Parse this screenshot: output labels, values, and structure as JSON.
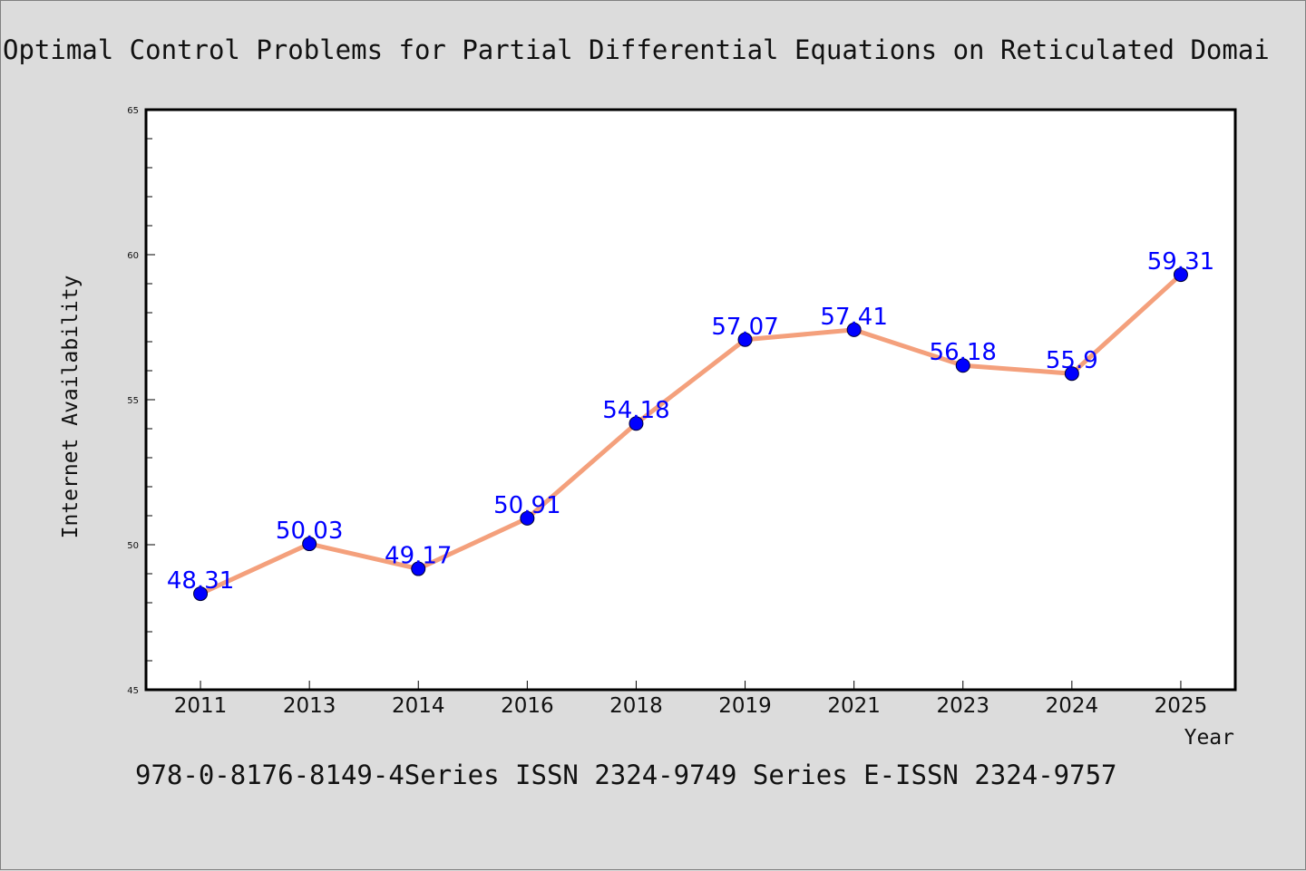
{
  "chart_data": {
    "type": "line",
    "title": "Optimal Control Problems for Partial Differential Equations on Reticulated Domai",
    "xlabel": "Year",
    "ylabel": "Internet Availability",
    "categories": [
      "2011",
      "2013",
      "2014",
      "2016",
      "2018",
      "2019",
      "2021",
      "2023",
      "2024",
      "2025"
    ],
    "values": [
      48.31,
      50.03,
      49.17,
      50.91,
      54.18,
      57.07,
      57.41,
      56.18,
      55.9,
      59.31
    ],
    "data_labels": [
      "48.31",
      "50.03",
      "49.17",
      "50.91",
      "54.18",
      "57.07",
      "57.41",
      "56.18",
      "55.9",
      "59.31"
    ],
    "ylim": [
      45,
      65
    ],
    "yticks": [
      45,
      50,
      55,
      60,
      65
    ],
    "ytick_labels": [
      "45",
      "50",
      "55",
      "60",
      "65"
    ],
    "grid": false,
    "legend": "none",
    "colors": {
      "line": "#f4a07c",
      "marker": "#0000ff",
      "data_label": "#0000ff",
      "plot_background": "#ffffff",
      "figure_background": "#dcdcdc"
    }
  },
  "footer_text": "978-0-8176-8149-4Series ISSN 2324-9749 Series E-ISSN 2324-9757"
}
